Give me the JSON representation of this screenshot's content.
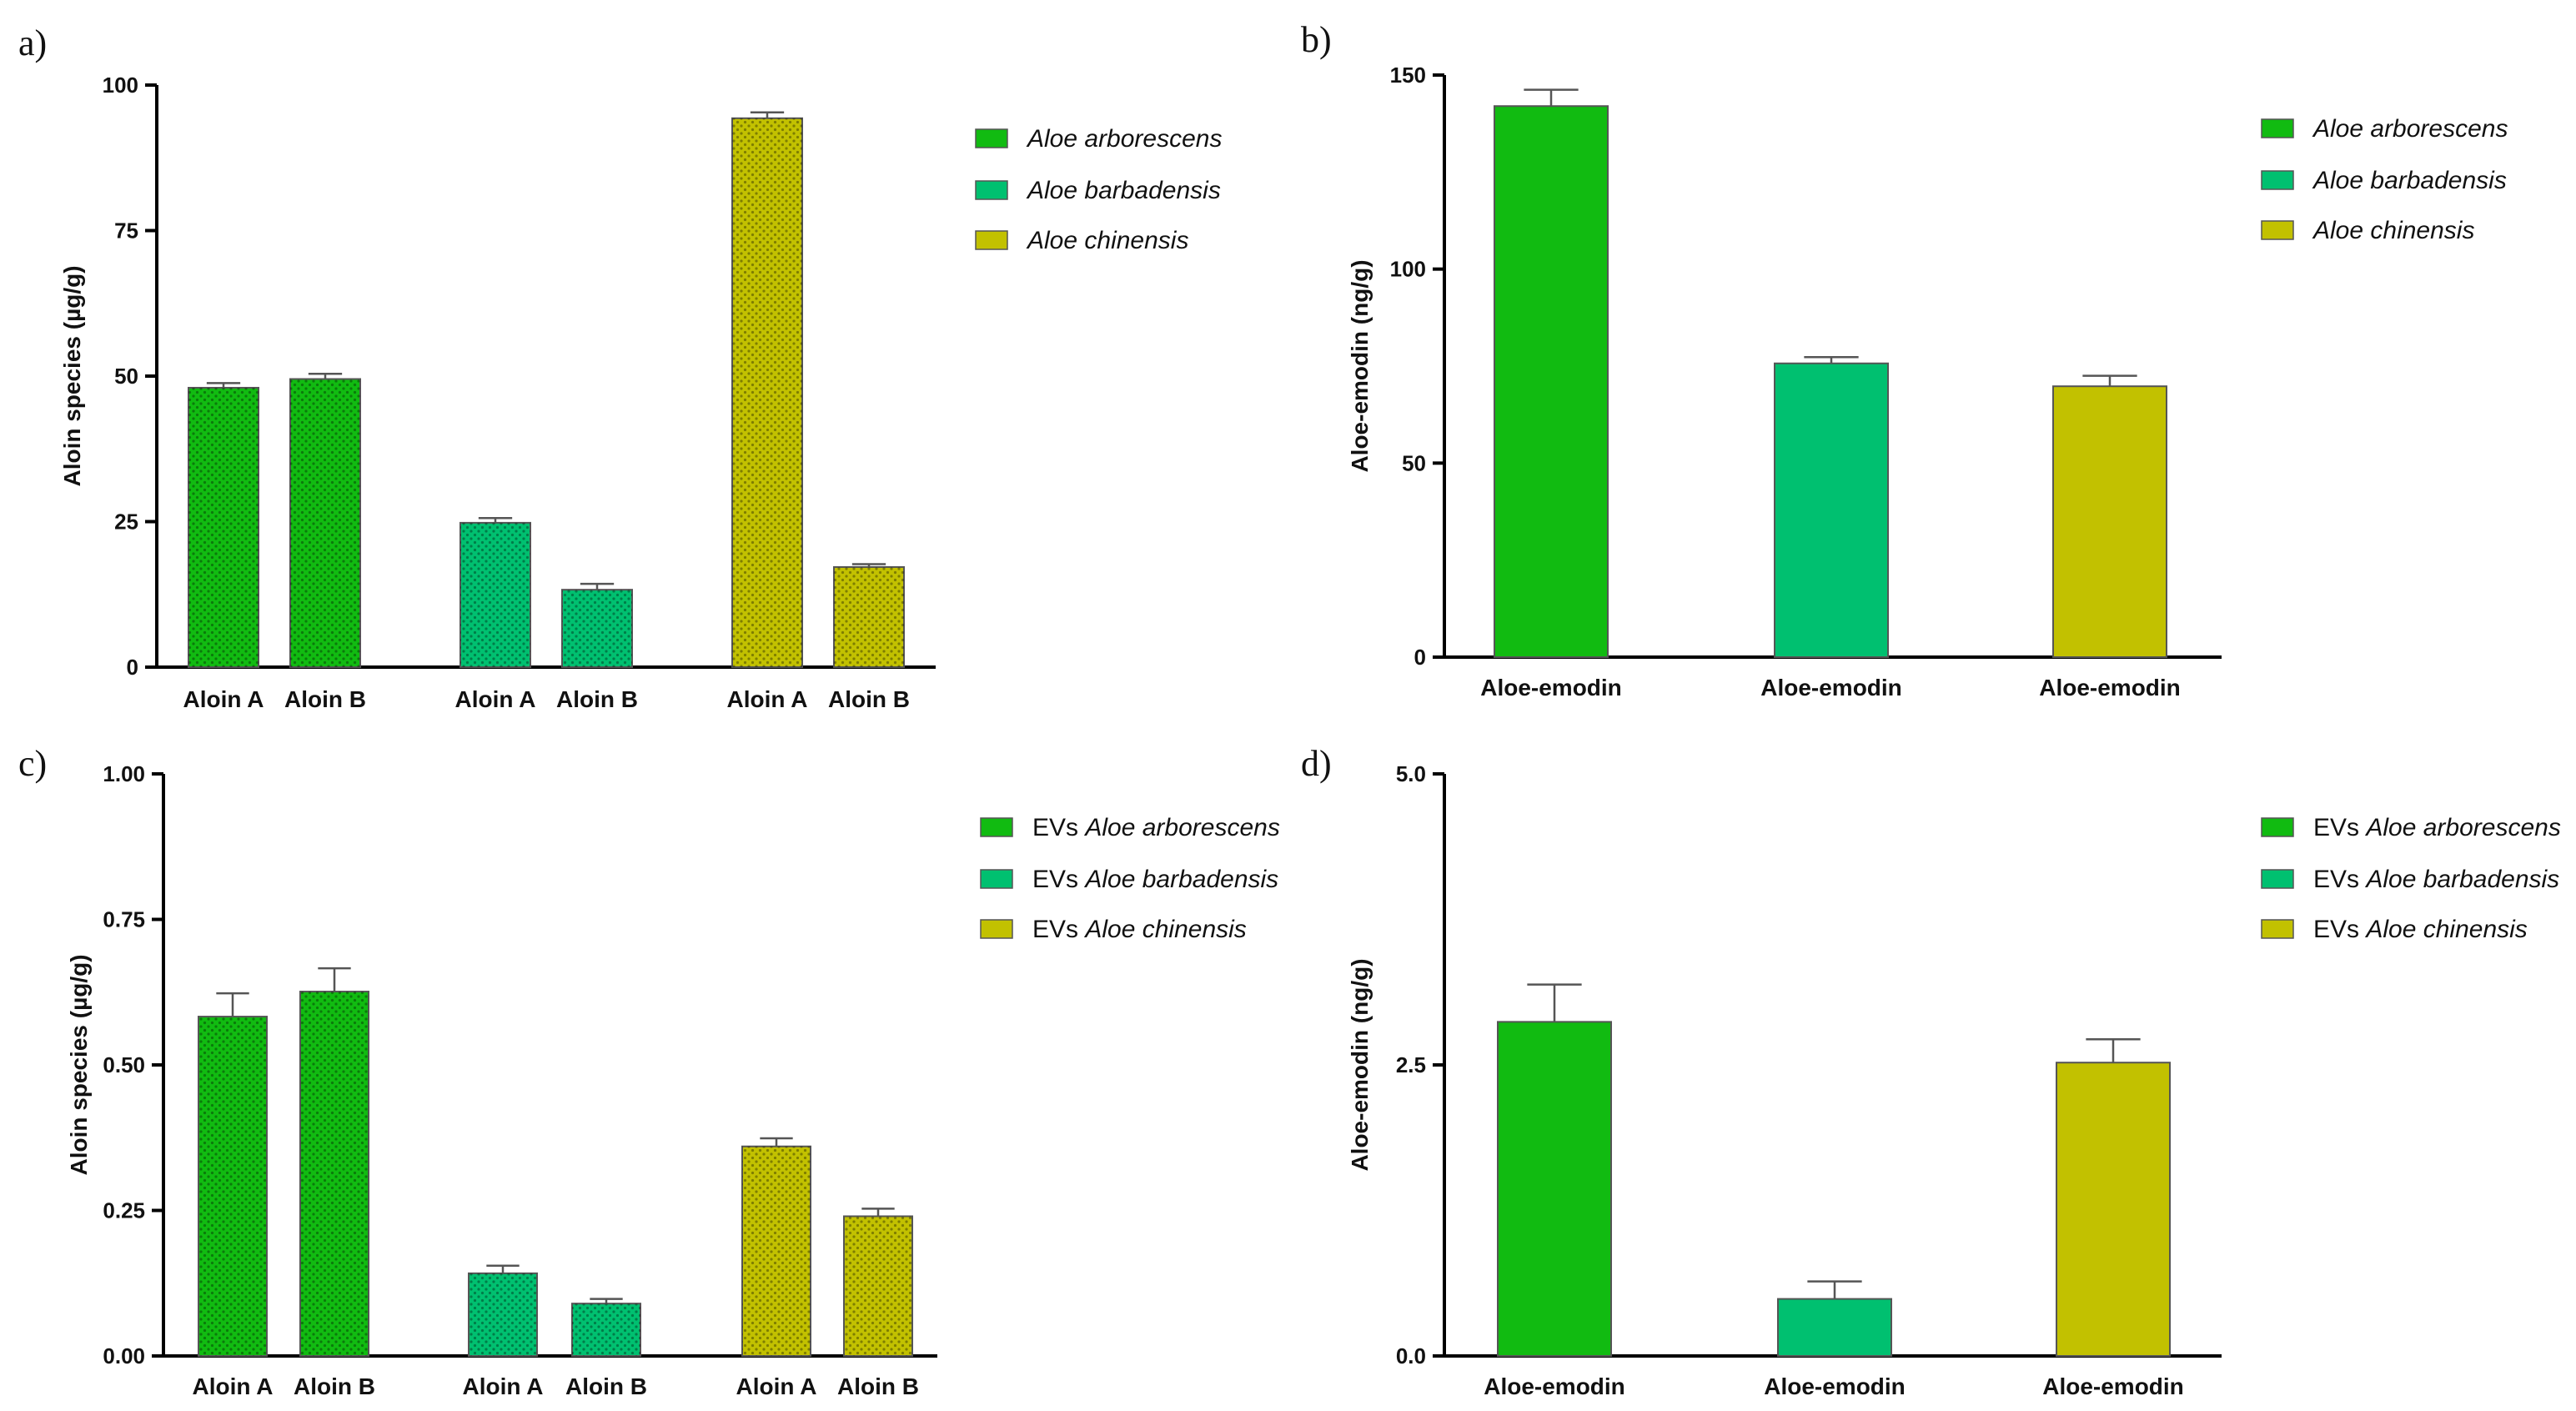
{
  "colors": {
    "arborescens": "#11bb11",
    "barbadensis": "#00c070",
    "chinensis": "#c2c100"
  },
  "chart_data": [
    {
      "id": "a",
      "panel_label": "a)",
      "type": "bar",
      "hatched": true,
      "ylabel": "Aloin species (µg/g)",
      "ylim": [
        0,
        100
      ],
      "yticks": [
        "0",
        "25",
        "50",
        "75",
        "100"
      ],
      "ytick_values": [
        0,
        25,
        50,
        75,
        100
      ],
      "categories": [
        "Aloin A",
        "Aloin B",
        "Aloin A",
        "Aloin B",
        "Aloin A",
        "Aloin B"
      ],
      "values": [
        48,
        49.5,
        24.8,
        13.3,
        94.3,
        17.2
      ],
      "errors": [
        0.8,
        0.9,
        0.8,
        1.0,
        1.0,
        0.5
      ],
      "bar_colors": [
        "arborescens",
        "arborescens",
        "barbadensis",
        "barbadensis",
        "chinensis",
        "chinensis"
      ],
      "legend": [
        {
          "prefix": "",
          "species": "Aloe arborescens",
          "color": "arborescens"
        },
        {
          "prefix": "",
          "species": "Aloe barbadensis",
          "color": "barbadensis"
        },
        {
          "prefix": "",
          "species": "Aloe chinensis",
          "color": "chinensis"
        }
      ]
    },
    {
      "id": "b",
      "panel_label": "b)",
      "type": "bar",
      "hatched": false,
      "ylabel": "Aloe-emodin (ng/g)",
      "ylim": [
        0,
        150
      ],
      "yticks": [
        "0",
        "50",
        "100",
        "150"
      ],
      "ytick_values": [
        0,
        50,
        100,
        150
      ],
      "categories": [
        "Aloe-emodin",
        "Aloe-emodin",
        "Aloe-emodin"
      ],
      "values": [
        142,
        75.7,
        69.8
      ],
      "errors": [
        4.2,
        1.6,
        2.7
      ],
      "bar_colors": [
        "arborescens",
        "barbadensis",
        "chinensis"
      ],
      "legend": [
        {
          "prefix": "",
          "species": "Aloe arborescens",
          "color": "arborescens"
        },
        {
          "prefix": "",
          "species": "Aloe barbadensis",
          "color": "barbadensis"
        },
        {
          "prefix": "",
          "species": "Aloe chinensis",
          "color": "chinensis"
        }
      ]
    },
    {
      "id": "c",
      "panel_label": "c)",
      "type": "bar",
      "hatched": true,
      "ylabel": "Aloin species (µg/g)",
      "ylim": [
        0,
        1.0
      ],
      "yticks": [
        "0.00",
        "0.25",
        "0.50",
        "0.75",
        "1.00"
      ],
      "ytick_values": [
        0,
        0.25,
        0.5,
        0.75,
        1.0
      ],
      "categories": [
        "Aloin A",
        "Aloin B",
        "Aloin A",
        "Aloin B",
        "Aloin A",
        "Aloin B"
      ],
      "values": [
        0.583,
        0.626,
        0.142,
        0.09,
        0.36,
        0.24
      ],
      "errors": [
        0.04,
        0.04,
        0.013,
        0.008,
        0.014,
        0.013
      ],
      "bar_colors": [
        "arborescens",
        "arborescens",
        "barbadensis",
        "barbadensis",
        "chinensis",
        "chinensis"
      ],
      "legend": [
        {
          "prefix": "EVs",
          "species": "Aloe arborescens",
          "color": "arborescens"
        },
        {
          "prefix": "EVs",
          "species": "Aloe barbadensis",
          "color": "barbadensis"
        },
        {
          "prefix": "EVs",
          "species": "Aloe chinensis",
          "color": "chinensis"
        }
      ]
    },
    {
      "id": "d",
      "panel_label": "d)",
      "type": "bar",
      "hatched": false,
      "ylabel": "Aloe-emodin  (ng/g)",
      "ylim": [
        0,
        5.0
      ],
      "yticks": [
        "0.0",
        "2.5",
        "5.0"
      ],
      "ytick_values": [
        0,
        2.5,
        5.0
      ],
      "categories": [
        "Aloe-emodin",
        "Aloe-emodin",
        "Aloe-emodin"
      ],
      "values": [
        2.87,
        0.49,
        2.52
      ],
      "errors": [
        0.32,
        0.15,
        0.2
      ],
      "bar_colors": [
        "arborescens",
        "barbadensis",
        "chinensis"
      ],
      "legend": [
        {
          "prefix": "EVs",
          "species": "Aloe arborescens",
          "color": "arborescens"
        },
        {
          "prefix": "EVs",
          "species": "Aloe barbadensis",
          "color": "barbadensis"
        },
        {
          "prefix": "EVs",
          "species": "Aloe chinensis",
          "color": "chinensis"
        }
      ]
    }
  ]
}
